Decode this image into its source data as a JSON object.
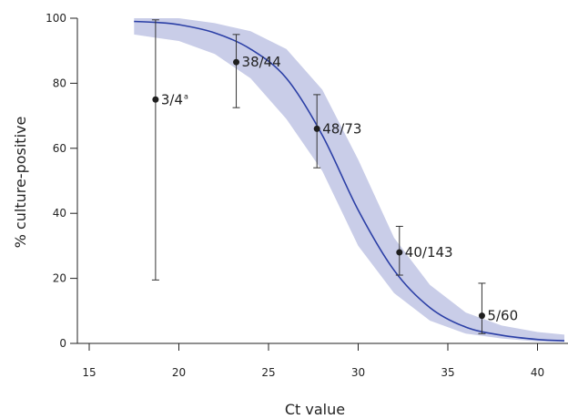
{
  "chart_data": {
    "type": "scatter",
    "xlabel": "Ct value",
    "ylabel": "% culture-positive",
    "xlim": [
      14,
      41.5
    ],
    "ylim": [
      0,
      100
    ],
    "xticks": [
      15,
      20,
      25,
      30,
      35,
      40
    ],
    "yticks": [
      0,
      20,
      40,
      60,
      80,
      100
    ],
    "xtick_labels": [
      "15",
      "20",
      "25",
      "30",
      "35",
      "40"
    ],
    "ytick_labels": [
      "0",
      "20",
      "40",
      "60",
      "80",
      "100"
    ],
    "points": [
      {
        "x": 18.7,
        "y": 75,
        "ci_low": 19.5,
        "ci_high": 99.5,
        "label": "3/4",
        "superscript": "a"
      },
      {
        "x": 23.2,
        "y": 86.5,
        "ci_low": 72.5,
        "ci_high": 95,
        "label": "38/44"
      },
      {
        "x": 27.7,
        "y": 66,
        "ci_low": 54,
        "ci_high": 76.5,
        "label": "48/73"
      },
      {
        "x": 32.3,
        "y": 28,
        "ci_low": 21,
        "ci_high": 36,
        "label": "40/143"
      },
      {
        "x": 36.9,
        "y": 8.5,
        "ci_low": 3,
        "ci_high": 18.5,
        "label": "5/60"
      }
    ],
    "curve": {
      "x": [
        17.5,
        18.7,
        20,
        22,
        24,
        26,
        28,
        30,
        32,
        34,
        36,
        38,
        40,
        41.5
      ],
      "y": [
        99,
        98.7,
        98,
        95.5,
        90.5,
        81.5,
        64,
        41,
        22.5,
        11,
        5,
        2.5,
        1.2,
        0.8
      ],
      "band_low": [
        95,
        94,
        93,
        89,
        81.5,
        69,
        53,
        30,
        15.5,
        7,
        3,
        1.5,
        0.6,
        0.4
      ],
      "band_high": [
        100,
        100,
        100,
        98.5,
        96,
        90.5,
        78,
        56.5,
        32.5,
        18,
        9.5,
        5.5,
        3.5,
        2.7
      ]
    },
    "colors": {
      "curve": "#2b3fa6",
      "band": "#c9cde8",
      "points": "#1f1f1f",
      "errorbars": "#333333",
      "axes": "#222222"
    }
  }
}
